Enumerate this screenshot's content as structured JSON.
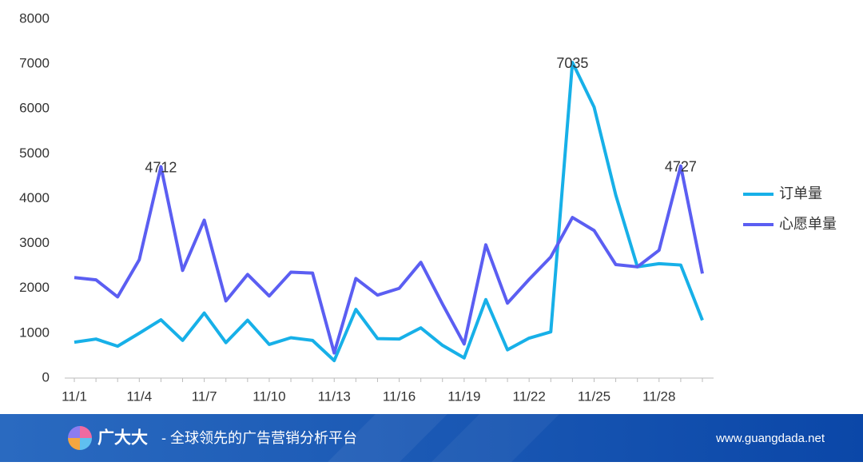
{
  "chart_data": {
    "type": "line",
    "categories": [
      "11/1",
      null,
      null,
      "11/4",
      null,
      null,
      "11/7",
      null,
      null,
      "11/10",
      null,
      null,
      "11/13",
      null,
      null,
      "11/16",
      null,
      null,
      "11/19",
      null,
      null,
      "11/22",
      null,
      null,
      "11/25",
      null,
      null,
      "11/28",
      null,
      null
    ],
    "series": [
      {
        "name": "订单量",
        "color": "#17b0e8",
        "labeled_points": [
          23
        ],
        "values": [
          800,
          870,
          710,
          1000,
          1300,
          840,
          1450,
          790,
          1290,
          750,
          900,
          840,
          390,
          1530,
          880,
          870,
          1120,
          730,
          450,
          1750,
          630,
          890,
          1030,
          7035,
          6040,
          4080,
          2480,
          2550,
          2520,
          1290
        ]
      },
      {
        "name": "心愿单量",
        "color": "#5b5ef2",
        "labeled_points": [
          4,
          28
        ],
        "values": [
          2240,
          2190,
          1810,
          2640,
          4712,
          2400,
          3520,
          1720,
          2310,
          1830,
          2360,
          2340,
          560,
          2220,
          1850,
          2000,
          2580,
          1650,
          760,
          2970,
          1670,
          2200,
          2700,
          3580,
          3290,
          2530,
          2480,
          2850,
          4727,
          2330
        ]
      }
    ],
    "ylim": [
      0,
      8000
    ],
    "yticks": [
      0,
      1000,
      2000,
      3000,
      4000,
      5000,
      6000,
      7000,
      8000
    ],
    "grid": false,
    "legend": "right"
  },
  "footer": {
    "brand": "广大大",
    "tagline": "- 全球领先的广告营销分析平台",
    "url": "www.guangdada.net"
  }
}
